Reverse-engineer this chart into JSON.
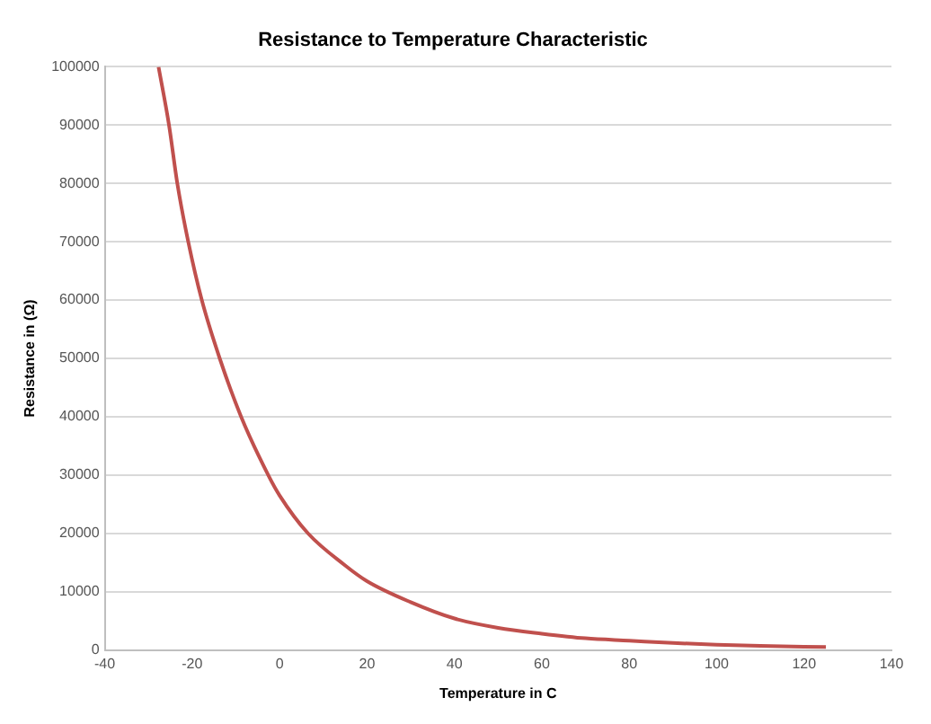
{
  "chart_data": {
    "type": "line",
    "title": "Resistance to Temperature Characteristic",
    "xlabel": "Temperature in C",
    "ylabel": "Resistance in (Ω)",
    "series": [
      {
        "color": "#c0504d",
        "x": [
          -27.7,
          -25.3,
          -23.4,
          -20.9,
          -17.8,
          -13.7,
          -8.8,
          -2.6,
          0,
          6.5,
          15,
          20,
          30,
          40,
          50,
          60,
          70,
          80,
          90,
          100,
          110,
          125
        ],
        "values": [
          100000,
          90000,
          80000,
          70000,
          60000,
          50000,
          40000,
          30000,
          26500,
          20000,
          14500,
          11800,
          8200,
          5400,
          3800,
          2800,
          2000,
          1600,
          1200,
          900,
          700,
          500
        ]
      }
    ],
    "xlim": [
      -40,
      140
    ],
    "xticks": [
      -40,
      -20,
      0,
      20,
      40,
      60,
      80,
      100,
      120,
      140
    ],
    "ylim": [
      0,
      100000
    ],
    "yticks": [
      0,
      10000,
      20000,
      30000,
      40000,
      50000,
      60000,
      70000,
      80000,
      90000,
      100000
    ],
    "grid": "y",
    "legend": false,
    "marker": "none",
    "line_style": "solid"
  }
}
